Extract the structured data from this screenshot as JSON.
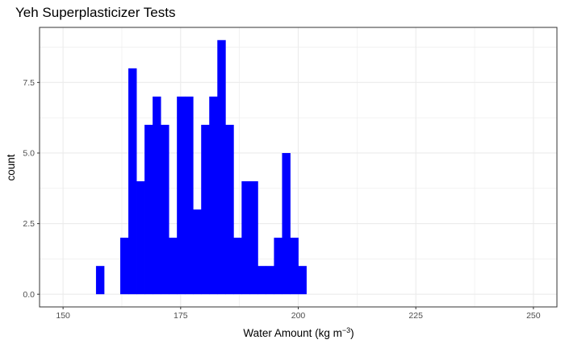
{
  "chart_data": {
    "type": "bar",
    "title": "Yeh Superplasticizer Tests",
    "xlabel": "Water Amount (kg m",
    "xlabel_superscript": "−3",
    "xlabel_close": ")",
    "ylabel": "count",
    "xlim": [
      145,
      255
    ],
    "ylim": [
      -0.45,
      9.45
    ],
    "x_ticks": [
      150,
      175,
      200,
      225,
      250
    ],
    "x_tick_labels": [
      "150",
      "175",
      "200",
      "225",
      "250"
    ],
    "y_ticks": [
      0,
      2.5,
      5,
      7.5
    ],
    "y_tick_labels": [
      "0.0",
      "2.5",
      "5.0",
      "7.5"
    ],
    "x_minor": [
      162.5,
      187.5,
      212.5,
      237.5
    ],
    "y_minor": [
      1.25,
      3.75,
      6.25,
      8.75
    ],
    "grid": true,
    "bar_color": "#0000ff",
    "bins": {
      "start": 157.0,
      "width": 1.72,
      "counts": [
        1,
        0,
        0,
        2,
        8,
        4,
        6,
        7,
        6,
        2,
        7,
        7,
        3,
        6,
        7,
        9,
        6,
        2,
        4,
        4,
        1,
        1,
        2,
        5,
        2,
        1
      ]
    }
  }
}
